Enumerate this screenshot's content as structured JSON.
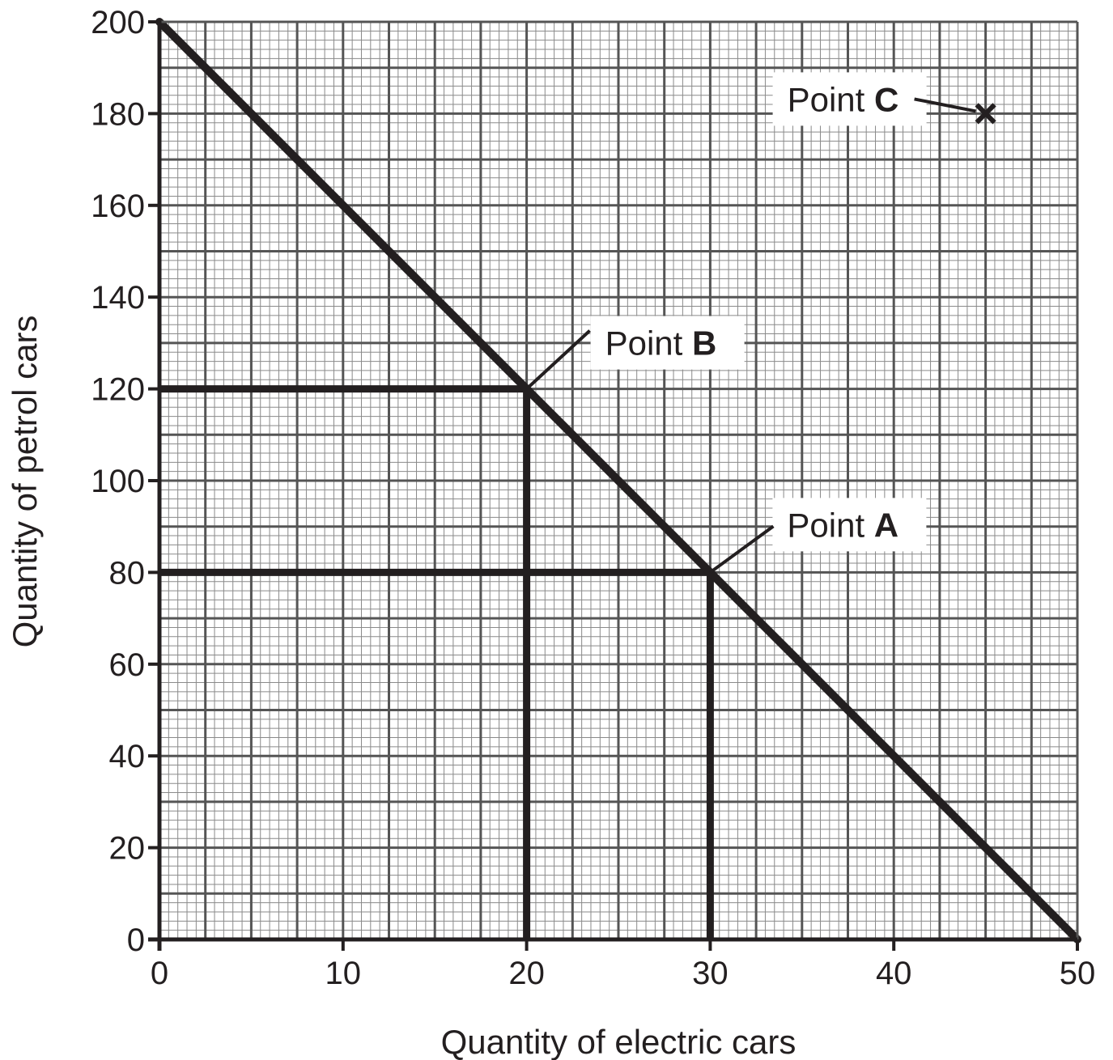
{
  "chart_data": {
    "type": "line",
    "xlabel": "Quantity of electric cars",
    "ylabel": "Quantity of petrol cars",
    "xlim": [
      0,
      50
    ],
    "ylim": [
      0,
      200
    ],
    "x_ticks": [
      0,
      10,
      20,
      30,
      40,
      50
    ],
    "y_ticks": [
      0,
      20,
      40,
      60,
      80,
      100,
      120,
      140,
      160,
      180,
      200
    ],
    "x_tick_labels": [
      "0",
      "10",
      "20",
      "30",
      "40",
      "50"
    ],
    "y_tick_labels": [
      "0",
      "20",
      "40",
      "60",
      "80",
      "100",
      "120",
      "140",
      "160",
      "180",
      "200"
    ],
    "grid": true,
    "series": [
      {
        "x": [
          0,
          50
        ],
        "y": [
          200,
          0
        ]
      }
    ],
    "guide_lines": [
      {
        "x": 20,
        "y": 120
      },
      {
        "x": 30,
        "y": 80
      }
    ],
    "points": [
      {
        "label_prefix": "Point ",
        "label_letter": "A",
        "x": 30,
        "y": 80,
        "marker": "none"
      },
      {
        "label_prefix": "Point ",
        "label_letter": "B",
        "x": 20,
        "y": 120,
        "marker": "none"
      },
      {
        "label_prefix": "Point ",
        "label_letter": "C",
        "x": 45,
        "y": 180,
        "marker": "cross"
      }
    ],
    "colors": {
      "ink": "#231f20",
      "major_grid": "#555555",
      "minor_grid": "#8a8a8a"
    }
  }
}
